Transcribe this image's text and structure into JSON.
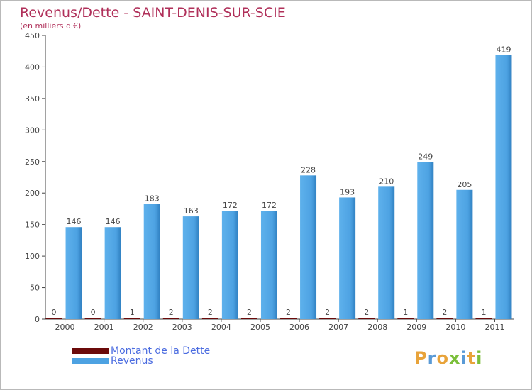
{
  "chart_data": {
    "type": "bar",
    "title": "Revenus/Dette - SAINT-DENIS-SUR-SCIE",
    "subtitle": "(en milliers d'€)",
    "xlabel": "",
    "ylabel": "",
    "ylim": [
      0,
      450
    ],
    "yticks": [
      0,
      50,
      100,
      150,
      200,
      250,
      300,
      350,
      400,
      450
    ],
    "categories": [
      "2000",
      "2001",
      "2002",
      "2003",
      "2004",
      "2005",
      "2006",
      "2007",
      "2008",
      "2009",
      "2010",
      "2011"
    ],
    "series": [
      {
        "name": "Montant de la Dette",
        "color": "#6b0a0a",
        "values": [
          0,
          0,
          1,
          2,
          2,
          2,
          2,
          2,
          2,
          1,
          2,
          1
        ]
      },
      {
        "name": "Revenus",
        "color": "#4da2e2",
        "values": [
          146,
          146,
          183,
          163,
          172,
          172,
          228,
          193,
          210,
          249,
          205,
          419
        ]
      }
    ],
    "grid": false,
    "legend": "bottom-left"
  },
  "brand": {
    "logo_text": "Proxiti"
  },
  "colors": {
    "title": "#b0305a",
    "legend_text": "#4b6ce0",
    "axis": "#555555"
  }
}
